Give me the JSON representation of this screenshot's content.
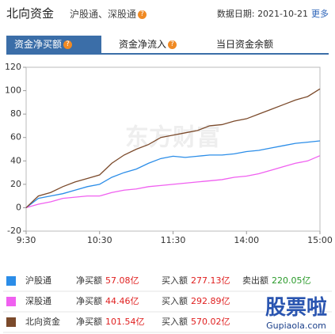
{
  "header": {
    "title": "北向资金",
    "subtitle": "沪股通、深股通",
    "date_label": "数据日期:",
    "date": "2021-10-21",
    "more": "更多"
  },
  "tabs": [
    "资金净买额",
    "资金净流入",
    "当日资金余额"
  ],
  "chart_data": {
    "type": "line",
    "watermark": "东方财富",
    "x": [
      0,
      10,
      20,
      30,
      40,
      50,
      60,
      70,
      80,
      90,
      100,
      110,
      120,
      130,
      140,
      150,
      160,
      170,
      180,
      190,
      200,
      210,
      220,
      230,
      240
    ],
    "xlim": [
      0,
      240
    ],
    "xticks": [
      {
        "value": 0,
        "label": "9:30"
      },
      {
        "value": 60,
        "label": "10:30"
      },
      {
        "value": 120,
        "label": "11:30"
      },
      {
        "value": 180,
        "label": "14:00"
      },
      {
        "value": 240,
        "label": "15:00"
      }
    ],
    "ylim": [
      -20,
      120
    ],
    "yticks": [
      -20,
      0,
      20,
      40,
      60,
      80,
      100,
      120
    ],
    "series": [
      {
        "name": "沪股通",
        "color": "#2b8de8",
        "values": [
          0,
          8,
          10,
          12,
          15,
          18,
          20,
          26,
          30,
          33,
          38,
          42,
          44,
          43,
          44,
          45,
          45,
          46,
          48,
          49,
          51,
          53,
          55,
          56,
          57.08
        ]
      },
      {
        "name": "深股通",
        "color": "#f060f0",
        "values": [
          0,
          3,
          5,
          8,
          9,
          10,
          10,
          13,
          15,
          16,
          18,
          19,
          20,
          21,
          22,
          23,
          24,
          26,
          27,
          29,
          32,
          35,
          38,
          40,
          44.46
        ]
      },
      {
        "name": "北向资金",
        "color": "#7b4a2b",
        "values": [
          0,
          10,
          13,
          18,
          22,
          25,
          28,
          38,
          45,
          50,
          54,
          60,
          62,
          64,
          66,
          70,
          71,
          74,
          76,
          80,
          84,
          88,
          92,
          95,
          101.54
        ]
      }
    ]
  },
  "legend_details": [
    [
      {
        "label": "净买额",
        "value": "57.08亿"
      },
      {
        "label": "买入额",
        "value": "277.13亿"
      },
      {
        "label": "卖出额",
        "value": "220.05亿"
      }
    ],
    [
      {
        "label": "净买额",
        "value": "44.46亿"
      },
      {
        "label": "买入额",
        "value": "292.89亿"
      }
    ],
    [
      {
        "label": "净买额",
        "value": "101.54亿"
      },
      {
        "label": "买入额",
        "value": "570.02亿"
      }
    ]
  ],
  "site_watermark": {
    "logo": "股票啦",
    "url": "Gupiaola.com"
  }
}
